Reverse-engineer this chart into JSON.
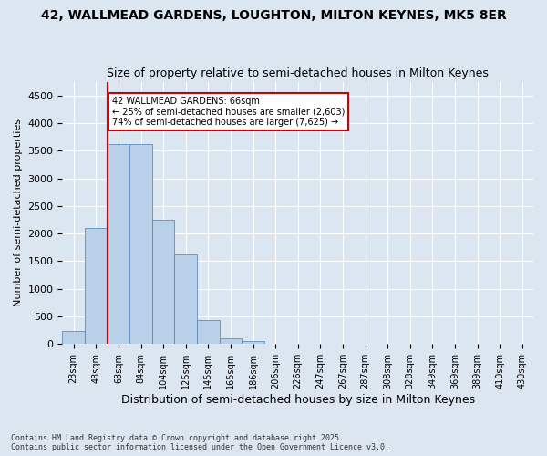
{
  "title1": "42, WALLMEAD GARDENS, LOUGHTON, MILTON KEYNES, MK5 8ER",
  "title2": "Size of property relative to semi-detached houses in Milton Keynes",
  "xlabel": "Distribution of semi-detached houses by size in Milton Keynes",
  "ylabel": "Number of semi-detached properties",
  "bins": [
    "23sqm",
    "43sqm",
    "63sqm",
    "84sqm",
    "104sqm",
    "125sqm",
    "145sqm",
    "165sqm",
    "186sqm",
    "206sqm",
    "226sqm",
    "247sqm",
    "267sqm",
    "287sqm",
    "308sqm",
    "328sqm",
    "349sqm",
    "369sqm",
    "389sqm",
    "410sqm",
    "430sqm"
  ],
  "values": [
    230,
    2100,
    3625,
    3625,
    2250,
    1625,
    430,
    100,
    60,
    0,
    0,
    0,
    0,
    0,
    0,
    0,
    0,
    0,
    0,
    0,
    0
  ],
  "bar_color": "#b8d0e8",
  "bar_edge_color": "#4a7fb5",
  "property_sqm": 66,
  "pct_smaller": 25,
  "n_smaller": 2603,
  "pct_larger": 74,
  "n_larger": 7625,
  "property_line_x": 1.5,
  "ylim": [
    0,
    4750
  ],
  "yticks": [
    0,
    500,
    1000,
    1500,
    2000,
    2500,
    3000,
    3500,
    4000,
    4500
  ],
  "bg_color": "#dce6f1",
  "plot_bg_color": "#dce6f1",
  "annotation_box_facecolor": "#ffffff",
  "annotation_border_color": "#cc0000",
  "vline_color": "#cc0000",
  "footer1": "Contains HM Land Registry data © Crown copyright and database right 2025.",
  "footer2": "Contains public sector information licensed under the Open Government Licence v3.0."
}
